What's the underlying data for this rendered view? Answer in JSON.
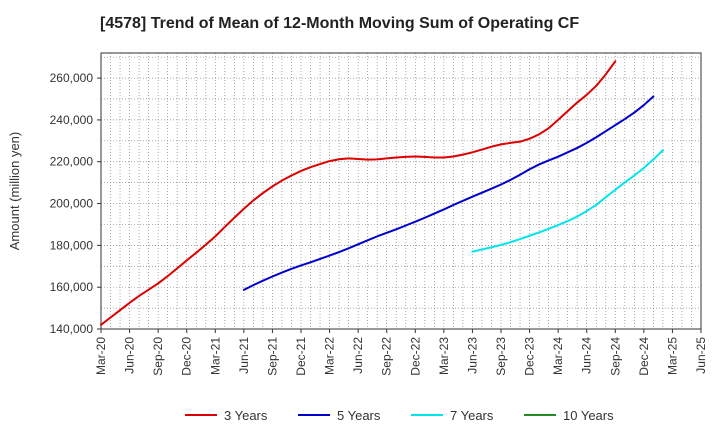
{
  "chart_data": {
    "type": "line",
    "title": "[4578]  Trend of Mean of 12-Month Moving Sum of Operating CF",
    "xlabel": "",
    "ylabel": "Amount (million yen)",
    "ylim": [
      140000,
      272000
    ],
    "y_ticks": [
      140000,
      160000,
      180000,
      200000,
      220000,
      240000,
      260000
    ],
    "y_tick_labels": [
      "140,000",
      "160,000",
      "180,000",
      "200,000",
      "220,000",
      "240,000",
      "260,000"
    ],
    "x_tick_labels": [
      "Mar-20",
      "Jun-20",
      "Sep-20",
      "Dec-20",
      "Mar-21",
      "Jun-21",
      "Sep-21",
      "Dec-21",
      "Mar-22",
      "Jun-22",
      "Sep-22",
      "Dec-22",
      "Mar-23",
      "Jun-23",
      "Sep-23",
      "Dec-23",
      "Mar-24",
      "Jun-24",
      "Sep-24",
      "Dec-24",
      "Mar-25",
      "Jun-25"
    ],
    "grid": true,
    "legend_position": "bottom",
    "series": [
      {
        "name": "3 Years",
        "color": "#dd0000",
        "start_month_index": 0,
        "values": [
          142000,
          145500,
          149000,
          152500,
          155800,
          158800,
          161800,
          165300,
          169000,
          172800,
          176500,
          180300,
          184300,
          188800,
          193200,
          197500,
          201500,
          205000,
          208200,
          211000,
          213400,
          215600,
          217400,
          218900,
          220300,
          221200,
          221600,
          221300,
          221000,
          221100,
          221600,
          222000,
          222300,
          222500,
          222300,
          222000,
          222000,
          222500,
          223400,
          224500,
          225800,
          227200,
          228300,
          229000,
          229600,
          231000,
          233100,
          236000,
          240000,
          244200,
          248300,
          252000,
          256300,
          261800,
          268000
        ]
      },
      {
        "name": "5 Years",
        "color": "#0000cc",
        "start_month_index": 15,
        "values": [
          158700,
          161000,
          163100,
          165100,
          167000,
          168800,
          170400,
          171900,
          173500,
          175100,
          176800,
          178600,
          180500,
          182400,
          184300,
          186000,
          187700,
          189500,
          191300,
          193200,
          195200,
          197200,
          199300,
          201300,
          203300,
          205200,
          207100,
          209100,
          211300,
          213800,
          216400,
          218700,
          220600,
          222400,
          224500,
          226600,
          229000,
          231700,
          234600,
          237500,
          240400,
          243500,
          247100,
          251200
        ]
      },
      {
        "name": "7 Years",
        "color": "#00e5ee",
        "start_month_index": 39,
        "values": [
          177000,
          178000,
          179100,
          180200,
          181500,
          183000,
          184600,
          186200,
          187900,
          189700,
          191600,
          193800,
          196400,
          199400,
          203000,
          206600,
          210100,
          213400,
          217000,
          221100,
          225500
        ]
      },
      {
        "name": "10 Years",
        "color": "#228b22",
        "start_month_index": 0,
        "values": []
      }
    ]
  }
}
